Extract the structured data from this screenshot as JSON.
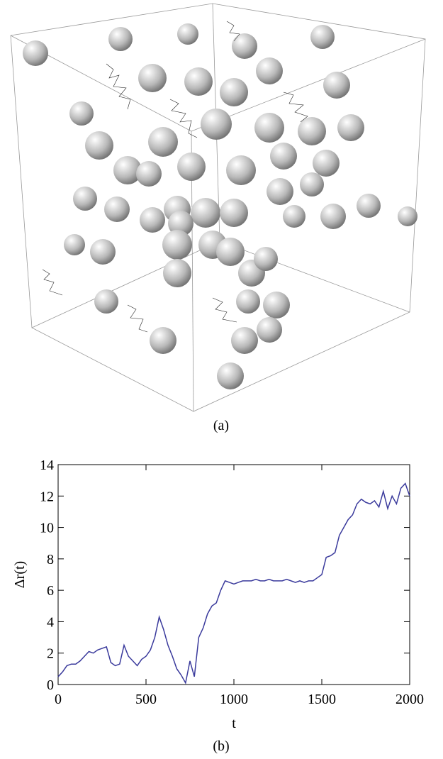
{
  "figure_a": {
    "caption": "(a)"
  },
  "chart_data": {
    "type": "line",
    "caption": "(b)",
    "x_label": "t",
    "y_label": "Δr(t)",
    "x": [
      0,
      25,
      50,
      75,
      100,
      125,
      150,
      175,
      200,
      225,
      250,
      275,
      300,
      325,
      350,
      375,
      400,
      425,
      450,
      475,
      500,
      525,
      550,
      575,
      600,
      625,
      650,
      675,
      700,
      725,
      750,
      775,
      800,
      825,
      850,
      875,
      900,
      925,
      950,
      975,
      1000,
      1025,
      1050,
      1075,
      1100,
      1125,
      1150,
      1175,
      1200,
      1225,
      1250,
      1275,
      1300,
      1325,
      1350,
      1375,
      1400,
      1425,
      1450,
      1475,
      1500,
      1525,
      1550,
      1575,
      1600,
      1625,
      1650,
      1675,
      1700,
      1725,
      1750,
      1775,
      1800,
      1825,
      1850,
      1875,
      1900,
      1925,
      1950,
      1975,
      2000
    ],
    "series": [
      {
        "color": "#3a3a9c",
        "values": [
          0.5,
          0.8,
          1.2,
          1.3,
          1.3,
          1.5,
          1.8,
          2.1,
          2.0,
          2.2,
          2.3,
          2.4,
          1.4,
          1.2,
          1.3,
          2.5,
          1.8,
          1.5,
          1.2,
          1.6,
          1.8,
          2.2,
          3.0,
          4.3,
          3.5,
          2.5,
          1.8,
          1.0,
          0.6,
          0.1,
          1.5,
          0.5,
          3.0,
          3.6,
          4.5,
          5.0,
          5.2,
          6.0,
          6.6,
          6.5,
          6.4,
          6.5,
          6.6,
          6.6,
          6.6,
          6.7,
          6.6,
          6.6,
          6.7,
          6.6,
          6.6,
          6.6,
          6.7,
          6.6,
          6.5,
          6.6,
          6.5,
          6.6,
          6.6,
          6.8,
          7.0,
          8.1,
          8.2,
          8.4,
          9.5,
          10.0,
          10.5,
          10.8,
          11.5,
          11.8,
          11.6,
          11.5,
          11.7,
          11.3,
          12.3,
          11.2,
          12.0,
          11.5,
          12.5,
          12.8,
          12.0
        ]
      }
    ],
    "xlim": [
      0,
      2000
    ],
    "xticks": [
      0,
      500,
      1000,
      1500,
      2000
    ],
    "ylim": [
      0,
      14
    ],
    "yticks": [
      0,
      2,
      4,
      6,
      8,
      10,
      12,
      14
    ]
  }
}
